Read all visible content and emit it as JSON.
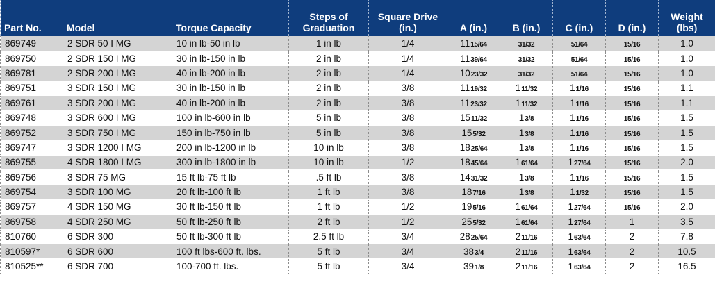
{
  "table": {
    "headers": [
      "Part No.",
      "Model",
      "Torque Capacity",
      "Steps of Graduation",
      "Square Drive (in.)",
      "A (in.)",
      "B (in.)",
      "C (in.)",
      "D (in.)",
      "Weight (lbs)"
    ],
    "header_lines": [
      [
        "Part No."
      ],
      [
        "Model"
      ],
      [
        "Torque Capacity"
      ],
      [
        "Steps of",
        "Graduation"
      ],
      [
        "Square Drive",
        "(in.)"
      ],
      [
        "A (in.)"
      ],
      [
        "B (in.)"
      ],
      [
        "C (in.)"
      ],
      [
        "D (in.)"
      ],
      [
        "Weight (lbs)"
      ]
    ],
    "rows": [
      {
        "part": "869749",
        "model": "2 SDR 50 I MG",
        "torque": "10 in lb-50 in lb",
        "steps": "1 in lb",
        "drive": "1/4",
        "a": {
          "whole": "11",
          "frac": "15/64"
        },
        "b": {
          "whole": "",
          "frac": "31/32"
        },
        "c": {
          "whole": "",
          "frac": "51/64"
        },
        "d": {
          "whole": "",
          "frac": "15/16"
        },
        "weight": "1.0"
      },
      {
        "part": "869750",
        "model": "2 SDR 150 I MG",
        "torque": "30 in lb-150 in lb",
        "steps": "2 in lb",
        "drive": "1/4",
        "a": {
          "whole": "11",
          "frac": "39/64"
        },
        "b": {
          "whole": "",
          "frac": "31/32"
        },
        "c": {
          "whole": "",
          "frac": "51/64"
        },
        "d": {
          "whole": "",
          "frac": "15/16"
        },
        "weight": "1.0"
      },
      {
        "part": "869781",
        "model": "2 SDR 200 I MG",
        "torque": "40 in lb-200 in lb",
        "steps": "2 in lb",
        "drive": "1/4",
        "a": {
          "whole": "10",
          "frac": "23/32"
        },
        "b": {
          "whole": "",
          "frac": "31/32"
        },
        "c": {
          "whole": "",
          "frac": "51/64"
        },
        "d": {
          "whole": "",
          "frac": "15/16"
        },
        "weight": "1.0"
      },
      {
        "part": "869751",
        "model": "3 SDR 150 I MG",
        "torque": "30 in lb-150 in lb",
        "steps": "2 in lb",
        "drive": "3/8",
        "a": {
          "whole": "11",
          "frac": "19/32"
        },
        "b": {
          "whole": "1",
          "frac": "11/32"
        },
        "c": {
          "whole": "1",
          "frac": "1/16"
        },
        "d": {
          "whole": "",
          "frac": "15/16"
        },
        "weight": "1.1"
      },
      {
        "part": "869761",
        "model": "3 SDR 200 I MG",
        "torque": "40 in lb-200 in lb",
        "steps": "2 in lb",
        "drive": "3/8",
        "a": {
          "whole": "11",
          "frac": "23/32"
        },
        "b": {
          "whole": "1",
          "frac": "11/32"
        },
        "c": {
          "whole": "1",
          "frac": "1/16"
        },
        "d": {
          "whole": "",
          "frac": "15/16"
        },
        "weight": "1.1"
      },
      {
        "part": "869748",
        "model": "3 SDR 600 I MG",
        "torque": "100 in lb-600 in lb",
        "steps": "5 in lb",
        "drive": "3/8",
        "a": {
          "whole": "15",
          "frac": "11/32"
        },
        "b": {
          "whole": "1",
          "frac": "3/8"
        },
        "c": {
          "whole": "1",
          "frac": "1/16"
        },
        "d": {
          "whole": "",
          "frac": "15/16"
        },
        "weight": "1.5"
      },
      {
        "part": "869752",
        "model": "3 SDR 750 I MG",
        "torque": "150 in lb-750 in lb",
        "steps": "5 in lb",
        "drive": "3/8",
        "a": {
          "whole": "15",
          "frac": "5/32"
        },
        "b": {
          "whole": "1",
          "frac": "3/8"
        },
        "c": {
          "whole": "1",
          "frac": "1/16"
        },
        "d": {
          "whole": "",
          "frac": "15/16"
        },
        "weight": "1.5"
      },
      {
        "part": "869747",
        "model": "3 SDR 1200 I MG",
        "torque": "200 in lb-1200 in lb",
        "steps": "10 in lb",
        "drive": "3/8",
        "a": {
          "whole": "18",
          "frac": "25/64"
        },
        "b": {
          "whole": "1",
          "frac": "3/8"
        },
        "c": {
          "whole": "1",
          "frac": "1/16"
        },
        "d": {
          "whole": "",
          "frac": "15/16"
        },
        "weight": "1.5"
      },
      {
        "part": "869755",
        "model": "4 SDR 1800 I MG",
        "torque": "300 in lb-1800 in lb",
        "steps": "10 in lb",
        "drive": "1/2",
        "a": {
          "whole": "18",
          "frac": "45/64"
        },
        "b": {
          "whole": "1",
          "frac": "61/64"
        },
        "c": {
          "whole": "1",
          "frac": "27/64"
        },
        "d": {
          "whole": "",
          "frac": "15/16"
        },
        "weight": "2.0"
      },
      {
        "part": "869756",
        "model": "3 SDR 75 MG",
        "torque": "15 ft lb-75 ft lb",
        "steps": ".5 ft lb",
        "drive": "3/8",
        "a": {
          "whole": "14",
          "frac": "31/32"
        },
        "b": {
          "whole": "1",
          "frac": "3/8"
        },
        "c": {
          "whole": "1",
          "frac": "1/16"
        },
        "d": {
          "whole": "",
          "frac": "15/16"
        },
        "weight": "1.5"
      },
      {
        "part": "869754",
        "model": "3 SDR 100 MG",
        "torque": "20 ft lb-100 ft lb",
        "steps": "1 ft lb",
        "drive": "3/8",
        "a": {
          "whole": "18",
          "frac": "7/16"
        },
        "b": {
          "whole": "1",
          "frac": "3/8"
        },
        "c": {
          "whole": "1",
          "frac": "1/32"
        },
        "d": {
          "whole": "",
          "frac": "15/16"
        },
        "weight": "1.5"
      },
      {
        "part": "869757",
        "model": "4 SDR 150 MG",
        "torque": "30 ft lb-150 ft lb",
        "steps": "1 ft lb",
        "drive": "1/2",
        "a": {
          "whole": "19",
          "frac": "5/16"
        },
        "b": {
          "whole": "1",
          "frac": "61/64"
        },
        "c": {
          "whole": "1",
          "frac": "27/64"
        },
        "d": {
          "whole": "",
          "frac": "15/16"
        },
        "weight": "2.0"
      },
      {
        "part": "869758",
        "model": "4 SDR 250 MG",
        "torque": "50 ft lb-250 ft lb",
        "steps": "2 ft lb",
        "drive": "1/2",
        "a": {
          "whole": "25",
          "frac": "5/32"
        },
        "b": {
          "whole": "1",
          "frac": "61/64"
        },
        "c": {
          "whole": "1",
          "frac": "27/64"
        },
        "d": {
          "whole": "1",
          "frac": ""
        },
        "weight": "3.5"
      },
      {
        "part": "810760",
        "model": "6 SDR 300",
        "torque": "50 ft lb-300 ft lb",
        "steps": "2.5 ft lb",
        "drive": "3/4",
        "a": {
          "whole": "28",
          "frac": "25/64"
        },
        "b": {
          "whole": "2",
          "frac": "11/16"
        },
        "c": {
          "whole": "1",
          "frac": "63/64"
        },
        "d": {
          "whole": "2",
          "frac": ""
        },
        "weight": "7.8"
      },
      {
        "part": "810597*",
        "model": "6 SDR 600",
        "torque": "100 ft lbs-600 ft. lbs.",
        "steps": "5 ft lb",
        "drive": "3/4",
        "a": {
          "whole": "38",
          "frac": "3/4"
        },
        "b": {
          "whole": "2",
          "frac": "11/16"
        },
        "c": {
          "whole": "1",
          "frac": "63/64"
        },
        "d": {
          "whole": "2",
          "frac": ""
        },
        "weight": "10.5"
      },
      {
        "part": "810525**",
        "model": "6 SDR 700",
        "torque": "100-700 ft. lbs.",
        "steps": "5 ft lb",
        "drive": "3/4",
        "a": {
          "whole": "39",
          "frac": "1/8"
        },
        "b": {
          "whole": "2",
          "frac": "11/16"
        },
        "c": {
          "whole": "1",
          "frac": "63/64"
        },
        "d": {
          "whole": "2",
          "frac": ""
        },
        "weight": "16.5"
      }
    ],
    "colors": {
      "header_bg": "#0f3d7d",
      "header_text": "#ffffff",
      "shade_row": "#d4d4d4",
      "plain_row": "#ffffff"
    }
  }
}
